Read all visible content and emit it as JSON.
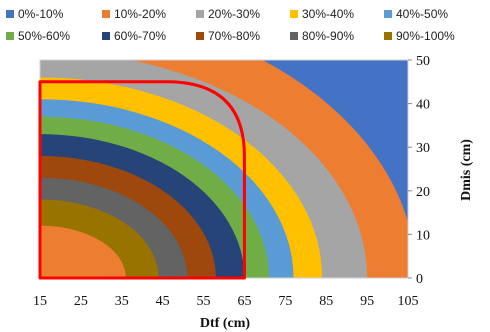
{
  "chart_data": {
    "type": "contour",
    "title": "",
    "xlabel": "Dtf (cm)",
    "ylabel": "Dmis (cm)",
    "xlim": [
      15,
      105
    ],
    "ylim": [
      0,
      50
    ],
    "x_ticks": [
      "15",
      "25",
      "35",
      "45",
      "55",
      "65",
      "75",
      "85",
      "95",
      "105"
    ],
    "y_ticks": [
      "0",
      "10",
      "20",
      "30",
      "40",
      "50"
    ],
    "legend_position": "top",
    "levels": [
      {
        "label": "0%-10%",
        "color": "#4472C4"
      },
      {
        "label": "10%-20%",
        "color": "#ED7D31"
      },
      {
        "label": "20%-30%",
        "color": "#A5A5A5"
      },
      {
        "label": "30%-40%",
        "color": "#FFC000"
      },
      {
        "label": "40%-50%",
        "color": "#5B9BD5"
      },
      {
        "label": "50%-60%",
        "color": "#70AD47"
      },
      {
        "label": "60%-70%",
        "color": "#264478"
      },
      {
        "label": "70%-80%",
        "color": "#9E480E"
      },
      {
        "label": "80%-90%",
        "color": "#636363"
      },
      {
        "label": "90%-100%",
        "color": "#997300"
      }
    ],
    "highlight_region": {
      "color": "#FF0000",
      "x_range": [
        15,
        65
      ],
      "y_range": [
        0,
        45
      ]
    }
  }
}
